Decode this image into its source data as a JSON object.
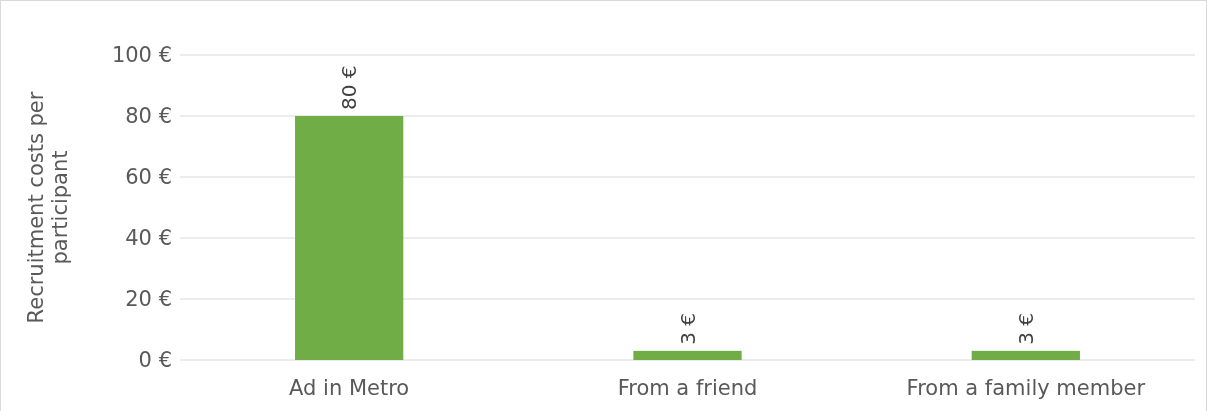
{
  "chart_data": {
    "type": "bar",
    "ylabel": "Recruitment costs per participant",
    "categories": [
      "Ad in Metro",
      "From a friend",
      "From a family member"
    ],
    "values": [
      80,
      3,
      3
    ],
    "color": "#70ad47",
    "value_labels": [
      "80 €",
      "3 €",
      "3 €"
    ],
    "ylim": [
      0,
      100
    ],
    "yticks": [
      {
        "value": 0,
        "label": "0 €"
      },
      {
        "value": 20,
        "label": "20 €"
      },
      {
        "value": 40,
        "label": "40 €"
      },
      {
        "value": 60,
        "label": "60 €"
      },
      {
        "value": 80,
        "label": "80 €"
      },
      {
        "value": 100,
        "label": "100 €"
      }
    ],
    "grid": "y"
  }
}
